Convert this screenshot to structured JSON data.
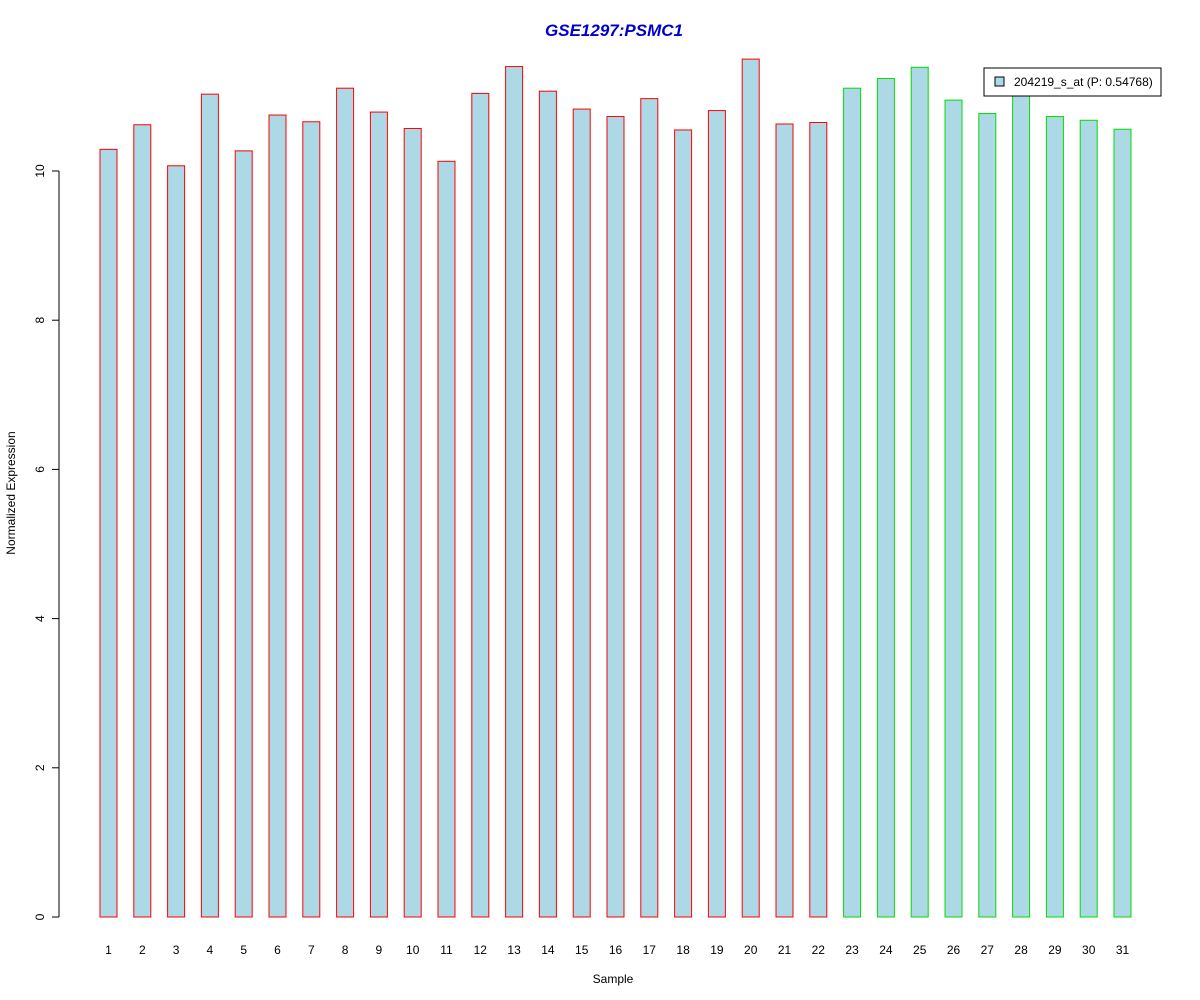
{
  "chart_data": {
    "type": "bar",
    "title": "GSE1297:PSMC1",
    "xlabel": "Sample",
    "ylabel": "Normalized Expression",
    "ylim": [
      0,
      11.6
    ],
    "yticks": [
      0,
      2,
      4,
      6,
      8,
      10
    ],
    "categories": [
      "1",
      "2",
      "3",
      "4",
      "5",
      "6",
      "7",
      "8",
      "9",
      "10",
      "11",
      "12",
      "13",
      "14",
      "15",
      "16",
      "17",
      "18",
      "19",
      "20",
      "21",
      "22",
      "23",
      "24",
      "25",
      "26",
      "27",
      "28",
      "29",
      "30",
      "31"
    ],
    "values": [
      10.29,
      10.62,
      10.07,
      11.03,
      10.27,
      10.75,
      10.66,
      11.11,
      10.79,
      10.57,
      10.13,
      11.04,
      11.4,
      11.07,
      10.83,
      10.73,
      10.97,
      10.55,
      10.81,
      11.5,
      10.63,
      10.65,
      11.11,
      11.24,
      11.39,
      10.95,
      10.77,
      11.07,
      10.73,
      10.68,
      10.56
    ],
    "group_border_colors": [
      "#ff0000",
      "#ff0000",
      "#ff0000",
      "#ff0000",
      "#ff0000",
      "#ff0000",
      "#ff0000",
      "#ff0000",
      "#ff0000",
      "#ff0000",
      "#ff0000",
      "#ff0000",
      "#ff0000",
      "#ff0000",
      "#ff0000",
      "#ff0000",
      "#ff0000",
      "#ff0000",
      "#ff0000",
      "#ff0000",
      "#ff0000",
      "#ff0000",
      "#00dd00",
      "#00dd00",
      "#00dd00",
      "#00dd00",
      "#00dd00",
      "#00dd00",
      "#00dd00",
      "#00dd00",
      "#00dd00"
    ],
    "bar_fill": "#add8e6",
    "title_color": "#0000cc",
    "legend": {
      "label": "204219_s_at (P: 0.54768)",
      "placement": "top-right",
      "swatch_color": "#add8e6"
    },
    "grid": false
  }
}
